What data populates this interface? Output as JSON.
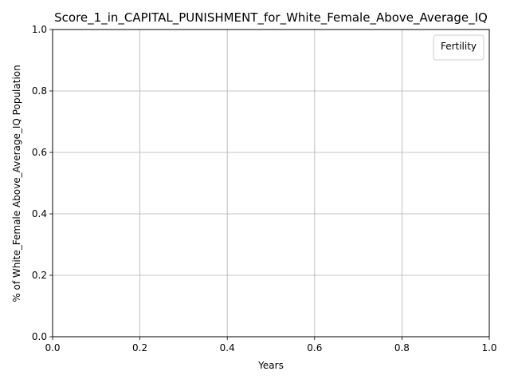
{
  "chart_data": {
    "type": "line",
    "title": "Score_1_in_CAPITAL_PUNISHMENT_for_White_Female_Above_Average_IQ",
    "xlabel": "Years",
    "ylabel": "% of White_Female Above_Average_IQ Population",
    "xlim": [
      0.0,
      1.0
    ],
    "ylim": [
      0.0,
      1.0
    ],
    "x_ticks": [
      "0.0",
      "0.2",
      "0.4",
      "0.6",
      "0.8",
      "1.0"
    ],
    "y_ticks": [
      "0.0",
      "0.2",
      "0.4",
      "0.6",
      "0.8",
      "1.0"
    ],
    "grid": true,
    "legend": {
      "title": "Fertility",
      "placement": "top-right",
      "entries": []
    },
    "series": []
  },
  "colors": {
    "grid": "#b0b0b0",
    "axis": "#000000",
    "legend_border": "#cccccc"
  }
}
